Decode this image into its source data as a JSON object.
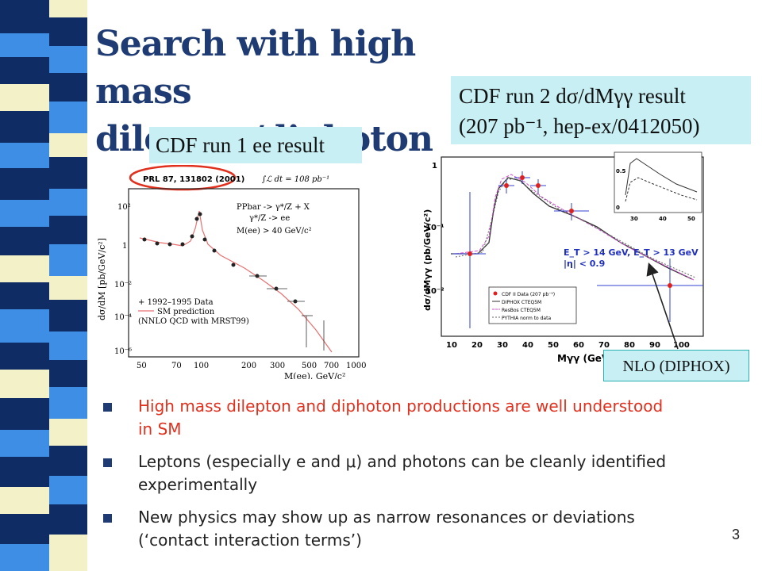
{
  "slide": {
    "title_line1": "Search with high mass",
    "title_line2": "dilepton/diphoton",
    "page_number": "3",
    "colors": {
      "title": "#1f3b73",
      "caption_bg": "#c8f0f4",
      "bullet_red": "#e0301e",
      "stripe_navy": "#0f2d64",
      "stripe_blue": "#3f8ee6",
      "stripe_cream": "#f3f1c8"
    }
  },
  "captions": {
    "run1": "CDF run 1 ee result",
    "run2_line1": "CDF run 2 dσ/dMγγ result",
    "run2_line2": "(207 pb⁻¹, hep-ex/0412050)",
    "nlo": "NLO (DIPHOX)"
  },
  "plot1": {
    "ref": "PRL 87, 131802 (2001)",
    "lumi": "∫ℒ dt = 108 pb⁻¹",
    "process1": "PPbar -> γ*/Z + X",
    "process2": "γ*/Z -> ee",
    "cut": "M(ee) > 40 GeV/c²",
    "legend_data": "1992–1995 Data",
    "legend_sm": "SM prediction",
    "legend_sm2": "(NNLO QCD with MRST99)",
    "ylabel": "dσ/dM [pb/GeV/c²]",
    "xlabel": "M(ee), GeV/c²",
    "yticks": [
      "10²",
      "1",
      "10⁻²",
      "10⁻⁴",
      "10⁻⁶"
    ],
    "xticks": [
      "50",
      "70",
      "100",
      "200",
      "300",
      "500",
      "700",
      "1000"
    ]
  },
  "plot2": {
    "ylabel": "dσ/dMγγ (pb/GeV/c²)",
    "xlabel": "Mγγ (GeV/c²)",
    "yticks": [
      "1",
      "10⁻¹",
      "10⁻²"
    ],
    "xticks": [
      "10",
      "20",
      "30",
      "40",
      "50",
      "60",
      "70",
      "80",
      "90",
      "100"
    ],
    "cut1": "E_T > 14 GeV, E_T > 13 GeV",
    "cut2": "|η| < 0.9",
    "legend": [
      "CDF II Data (207 pb⁻¹)",
      "DIPHOX CTEQ5M",
      "ResBos CTEQ5M",
      "PYTHIA norm to data"
    ],
    "inset_yticks": [
      "0.5",
      "0"
    ],
    "inset_xticks": [
      "30",
      "40",
      "50"
    ]
  },
  "bullets": [
    {
      "text": "High mass dilepton and diphoton productions are well understood in SM"
    },
    {
      "text": "Leptons (especially e and μ) and photons can be cleanly identified experimentally"
    },
    {
      "text": "New physics may show up as narrow resonances or deviations (‘contact interaction terms’)"
    }
  ]
}
